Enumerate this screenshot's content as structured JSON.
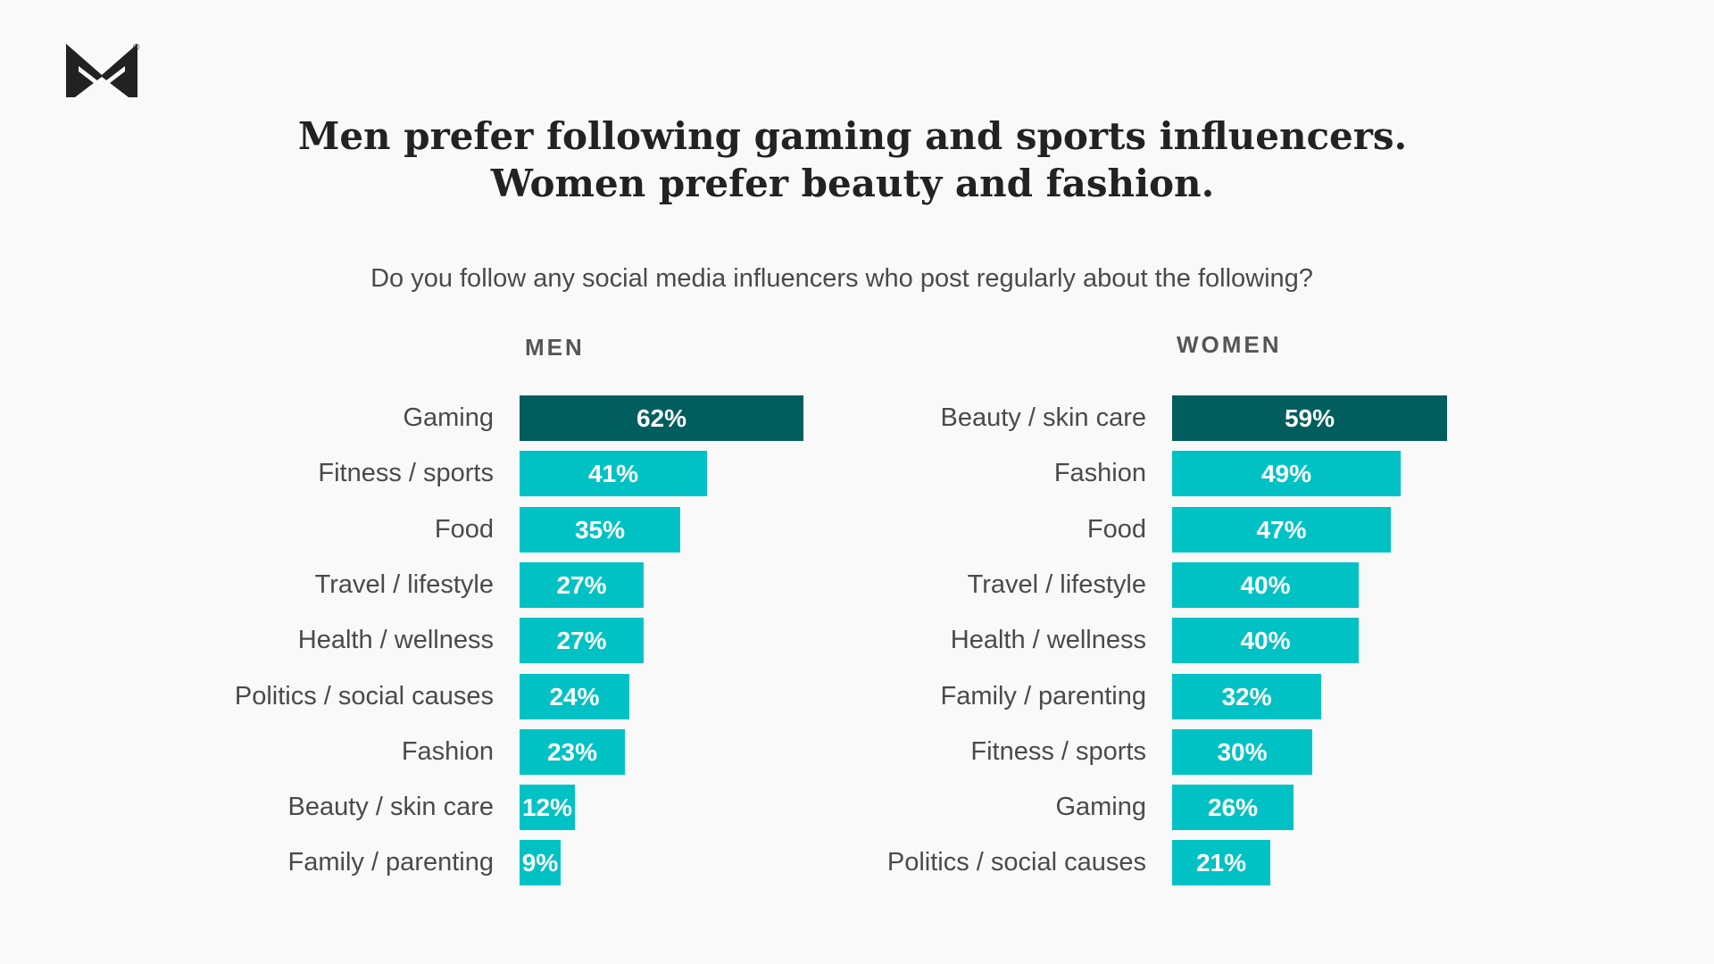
{
  "brand": {
    "logo_icon": "moneygeek-m-logo-icon",
    "registered_mark": "®"
  },
  "title_lines": [
    "Men prefer following gaming and sports influencers.",
    "Women prefer beauty and fashion."
  ],
  "subtitle": "Do you follow any social media influencers who post regularly about the following?",
  "colors": {
    "highlight": "#005e5e",
    "bar": "#00c2c4",
    "background": "#f9f9f9"
  },
  "chart_data": [
    {
      "type": "bar",
      "orientation": "horizontal",
      "title": "MEN",
      "categories": [
        "Gaming",
        "Fitness / sports",
        "Food",
        "Travel / lifestyle",
        "Health / wellness",
        "Politics / social causes",
        "Fashion",
        "Beauty / skin care",
        "Family / parenting"
      ],
      "values": [
        62,
        41,
        35,
        27,
        27,
        24,
        23,
        12,
        9
      ],
      "value_labels": [
        "62%",
        "41%",
        "35%",
        "27%",
        "27%",
        "24%",
        "23%",
        "12%",
        "9%"
      ],
      "unit": "%",
      "xlim": [
        0,
        100
      ],
      "grid": false
    },
    {
      "type": "bar",
      "orientation": "horizontal",
      "title": "WOMEN",
      "categories": [
        "Beauty / skin care",
        "Fashion",
        "Food",
        "Travel / lifestyle",
        "Health / wellness",
        "Family / parenting",
        "Fitness / sports",
        "Gaming",
        "Politics / social causes"
      ],
      "values": [
        59,
        49,
        47,
        40,
        40,
        32,
        30,
        26,
        21
      ],
      "value_labels": [
        "59%",
        "49%",
        "47%",
        "40%",
        "40%",
        "32%",
        "30%",
        "26%",
        "21%"
      ],
      "unit": "%",
      "xlim": [
        0,
        100
      ],
      "grid": false
    }
  ]
}
